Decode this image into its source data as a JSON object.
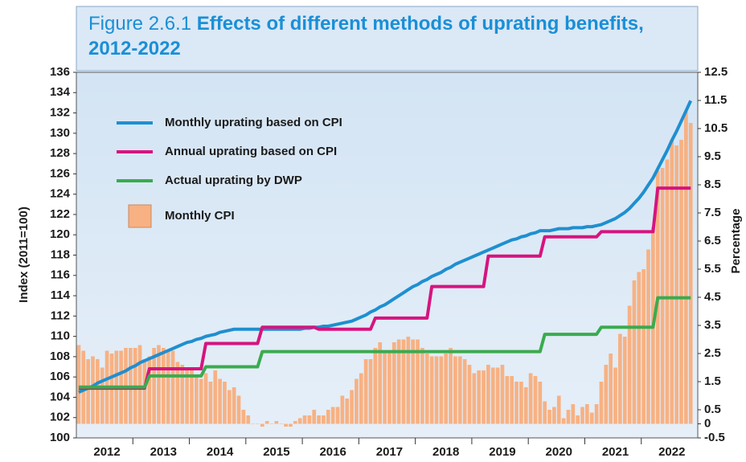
{
  "chart_data": {
    "type": "line",
    "figure_label": "Figure 2.6.1",
    "title": "Effects of different methods of uprating benefits, 2012-2022",
    "y_label": "Index (2011=100)",
    "y2_label": "Percentage",
    "categories": [
      null,
      null,
      null,
      null,
      null,
      null,
      "2012",
      null,
      null,
      null,
      null,
      null,
      null,
      null,
      null,
      null,
      null,
      null,
      "2013",
      null,
      null,
      null,
      null,
      null,
      null,
      null,
      null,
      null,
      null,
      null,
      "2014",
      null,
      null,
      null,
      null,
      null,
      null,
      null,
      null,
      null,
      null,
      null,
      "2015",
      null,
      null,
      null,
      null,
      null,
      null,
      null,
      null,
      null,
      null,
      null,
      "2016",
      null,
      null,
      null,
      null,
      null,
      null,
      null,
      null,
      null,
      null,
      null,
      "2017",
      null,
      null,
      null,
      null,
      null,
      null,
      null,
      null,
      null,
      null,
      null,
      "2018",
      null,
      null,
      null,
      null,
      null,
      null,
      null,
      null,
      null,
      null,
      null,
      "2019",
      null,
      null,
      null,
      null,
      null,
      null,
      null,
      null,
      null,
      null,
      null,
      "2020",
      null,
      null,
      null,
      null,
      null,
      null,
      null,
      null,
      null,
      null,
      null,
      "2021",
      null,
      null,
      null,
      null,
      null,
      null,
      null,
      null,
      null,
      null,
      null,
      "2022",
      null,
      null,
      null,
      null
    ],
    "ylim": [
      100,
      136
    ],
    "yticks": [
      100,
      102,
      104,
      106,
      108,
      110,
      112,
      114,
      116,
      118,
      120,
      122,
      124,
      126,
      128,
      130,
      132,
      134,
      136
    ],
    "y2lim": [
      -0.5,
      12.5
    ],
    "y2ticks": [
      -0.5,
      0,
      0.5,
      1.5,
      2.5,
      3.5,
      4.5,
      5.5,
      6.5,
      7.5,
      8.5,
      9.5,
      10.5,
      11.5,
      12.5
    ],
    "legend": "upper left",
    "series": [
      {
        "name": "Monthly uprating based on CPI",
        "type": "line",
        "color": "#1f8fd0",
        "values": [
          104.5,
          104.7,
          104.9,
          105.1,
          105.4,
          105.6,
          105.8,
          106.0,
          106.2,
          106.4,
          106.6,
          106.9,
          107.1,
          107.4,
          107.6,
          107.8,
          108.0,
          108.2,
          108.4,
          108.6,
          108.8,
          109.0,
          109.2,
          109.4,
          109.5,
          109.7,
          109.8,
          110.0,
          110.1,
          110.2,
          110.4,
          110.5,
          110.6,
          110.7,
          110.7,
          110.7,
          110.7,
          110.7,
          110.7,
          110.7,
          110.7,
          110.7,
          110.7,
          110.7,
          110.7,
          110.7,
          110.7,
          110.7,
          110.8,
          110.8,
          110.9,
          110.9,
          111.0,
          111.0,
          111.1,
          111.2,
          111.3,
          111.4,
          111.5,
          111.7,
          111.9,
          112.1,
          112.4,
          112.6,
          112.9,
          113.1,
          113.4,
          113.7,
          114.0,
          114.3,
          114.6,
          114.9,
          115.1,
          115.4,
          115.6,
          115.9,
          116.1,
          116.3,
          116.6,
          116.8,
          117.1,
          117.3,
          117.5,
          117.7,
          117.9,
          118.1,
          118.3,
          118.5,
          118.7,
          118.9,
          119.1,
          119.3,
          119.5,
          119.6,
          119.8,
          119.9,
          120.1,
          120.2,
          120.4,
          120.4,
          120.4,
          120.5,
          120.6,
          120.6,
          120.6,
          120.7,
          120.7,
          120.7,
          120.8,
          120.8,
          120.9,
          121.0,
          121.2,
          121.4,
          121.6,
          121.9,
          122.2,
          122.6,
          123.1,
          123.6,
          124.2,
          124.9,
          125.6,
          126.5,
          127.4,
          128.3,
          129.3,
          130.2,
          131.2,
          132.2,
          133.2
        ]
      },
      {
        "name": "Annual uprating based on CPI",
        "type": "line",
        "color": "#d6147f",
        "values": [
          104.9,
          104.9,
          104.9,
          104.9,
          104.9,
          104.9,
          104.9,
          104.9,
          104.9,
          104.9,
          104.9,
          104.9,
          104.9,
          104.9,
          104.9,
          106.8,
          106.8,
          106.8,
          106.8,
          106.8,
          106.8,
          106.8,
          106.8,
          106.8,
          106.8,
          106.8,
          106.8,
          109.3,
          109.3,
          109.3,
          109.3,
          109.3,
          109.3,
          109.3,
          109.3,
          109.3,
          109.3,
          109.3,
          109.3,
          110.9,
          110.9,
          110.9,
          110.9,
          110.9,
          110.9,
          110.9,
          110.9,
          110.9,
          110.9,
          110.9,
          110.9,
          110.7,
          110.7,
          110.7,
          110.7,
          110.7,
          110.7,
          110.7,
          110.7,
          110.7,
          110.7,
          110.7,
          110.7,
          111.8,
          111.8,
          111.8,
          111.8,
          111.8,
          111.8,
          111.8,
          111.8,
          111.8,
          111.8,
          111.8,
          111.8,
          114.9,
          114.9,
          114.9,
          114.9,
          114.9,
          114.9,
          114.9,
          114.9,
          114.9,
          114.9,
          114.9,
          114.9,
          117.9,
          117.9,
          117.9,
          117.9,
          117.9,
          117.9,
          117.9,
          117.9,
          117.9,
          117.9,
          117.9,
          117.9,
          119.8,
          119.8,
          119.8,
          119.8,
          119.8,
          119.8,
          119.8,
          119.8,
          119.8,
          119.8,
          119.8,
          119.8,
          120.3,
          120.3,
          120.3,
          120.3,
          120.3,
          120.3,
          120.3,
          120.3,
          120.3,
          120.3,
          120.3,
          120.3,
          124.6,
          124.6,
          124.6,
          124.6,
          124.6,
          124.6,
          124.6,
          124.6
        ]
      },
      {
        "name": "Actual uprating by DWP",
        "type": "line",
        "color": "#3aab4e",
        "values": [
          105.0,
          105.0,
          105.0,
          105.0,
          105.0,
          105.0,
          105.0,
          105.0,
          105.0,
          105.0,
          105.0,
          105.0,
          105.0,
          105.0,
          105.0,
          106.1,
          106.1,
          106.1,
          106.1,
          106.1,
          106.1,
          106.1,
          106.1,
          106.1,
          106.1,
          106.1,
          106.1,
          107.0,
          107.0,
          107.0,
          107.0,
          107.0,
          107.0,
          107.0,
          107.0,
          107.0,
          107.0,
          107.0,
          107.0,
          108.5,
          108.5,
          108.5,
          108.5,
          108.5,
          108.5,
          108.5,
          108.5,
          108.5,
          108.5,
          108.5,
          108.5,
          108.5,
          108.5,
          108.5,
          108.5,
          108.5,
          108.5,
          108.5,
          108.5,
          108.5,
          108.5,
          108.5,
          108.5,
          108.5,
          108.5,
          108.5,
          108.5,
          108.5,
          108.5,
          108.5,
          108.5,
          108.5,
          108.5,
          108.5,
          108.5,
          108.5,
          108.5,
          108.5,
          108.5,
          108.5,
          108.5,
          108.5,
          108.5,
          108.5,
          108.5,
          108.5,
          108.5,
          108.5,
          108.5,
          108.5,
          108.5,
          108.5,
          108.5,
          108.5,
          108.5,
          108.5,
          108.5,
          108.5,
          108.5,
          110.2,
          110.2,
          110.2,
          110.2,
          110.2,
          110.2,
          110.2,
          110.2,
          110.2,
          110.2,
          110.2,
          110.2,
          110.9,
          110.9,
          110.9,
          110.9,
          110.9,
          110.9,
          110.9,
          110.9,
          110.9,
          110.9,
          110.9,
          110.9,
          113.8,
          113.8,
          113.8,
          113.8,
          113.8,
          113.8,
          113.8,
          113.8
        ]
      },
      {
        "name": "Monthly CPI",
        "type": "bar",
        "axis": "y2",
        "color": "#f7b183",
        "values": [
          2.8,
          2.6,
          2.3,
          2.4,
          2.3,
          2.0,
          2.6,
          2.5,
          2.6,
          2.6,
          2.7,
          2.7,
          2.7,
          2.8,
          2.3,
          2.4,
          2.7,
          2.8,
          2.7,
          2.6,
          2.6,
          2.2,
          2.1,
          2.0,
          1.9,
          1.7,
          1.6,
          1.8,
          1.5,
          1.9,
          1.6,
          1.5,
          1.2,
          1.3,
          1.0,
          0.5,
          0.3,
          0.0,
          0.0,
          -0.1,
          0.1,
          0.0,
          0.1,
          0.0,
          -0.1,
          -0.1,
          0.1,
          0.2,
          0.3,
          0.3,
          0.5,
          0.3,
          0.3,
          0.5,
          0.6,
          0.6,
          1.0,
          0.9,
          1.2,
          1.6,
          1.8,
          2.3,
          2.3,
          2.7,
          2.9,
          2.6,
          2.6,
          2.9,
          3.0,
          3.0,
          3.1,
          3.0,
          3.0,
          2.7,
          2.5,
          2.4,
          2.4,
          2.4,
          2.5,
          2.7,
          2.4,
          2.4,
          2.3,
          2.1,
          1.8,
          1.9,
          1.9,
          2.1,
          2.0,
          2.0,
          2.1,
          1.7,
          1.7,
          1.5,
          1.5,
          1.3,
          1.8,
          1.7,
          1.5,
          0.8,
          0.5,
          0.6,
          1.0,
          0.2,
          0.5,
          0.7,
          0.3,
          0.6,
          0.7,
          0.4,
          0.7,
          1.5,
          2.1,
          2.5,
          2.0,
          3.2,
          3.1,
          4.2,
          5.1,
          5.4,
          5.5,
          6.2,
          7.0,
          9.0,
          9.1,
          9.4,
          10.1,
          9.9,
          10.1,
          11.1,
          10.7
        ]
      }
    ]
  }
}
